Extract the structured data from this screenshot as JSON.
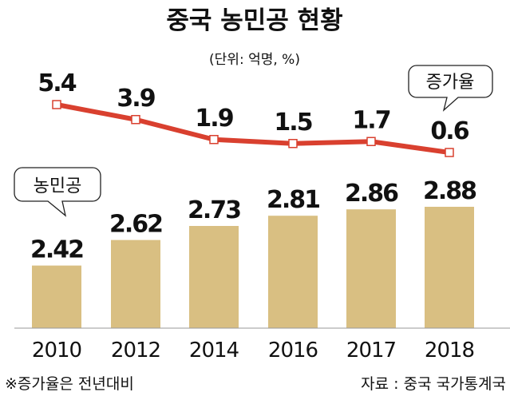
{
  "chart_data": {
    "type": "bar+line",
    "title": "중국 농민공 현황",
    "subtitle": "(단위: 억명, %)",
    "categories": [
      "2010",
      "2012",
      "2014",
      "2016",
      "2017",
      "2018"
    ],
    "series": [
      {
        "name": "농민공",
        "type": "bar",
        "unit": "억명",
        "values": [
          2.42,
          2.62,
          2.73,
          2.81,
          2.86,
          2.88
        ],
        "color": "#d9bf82"
      },
      {
        "name": "증가율",
        "type": "line",
        "unit": "%",
        "values": [
          5.4,
          3.9,
          1.9,
          1.5,
          1.7,
          0.6
        ],
        "color": "#d9402f"
      }
    ],
    "value_labels": {
      "bar": [
        "2.42",
        "2.62",
        "2.73",
        "2.81",
        "2.86",
        "2.88"
      ],
      "line": [
        "5.4",
        "3.9",
        "1.9",
        "1.5",
        "1.7",
        "0.6"
      ]
    },
    "grid": false
  },
  "footnote": "※증가율은 전년대비",
  "source": "자료 : 중국 국가통계국"
}
